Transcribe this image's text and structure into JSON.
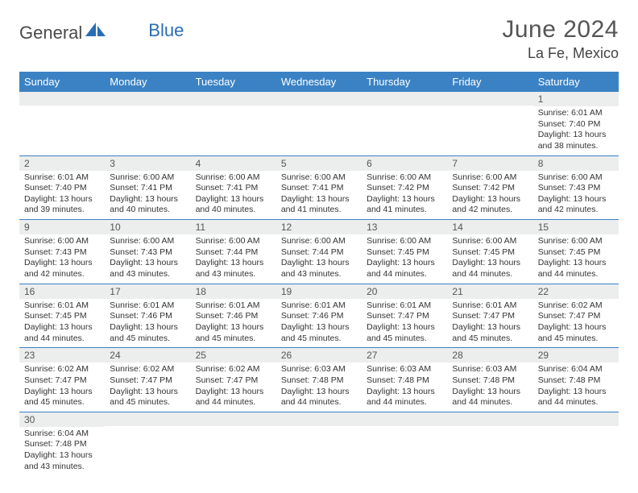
{
  "brand": {
    "part1": "General",
    "part2": "Blue"
  },
  "title": "June 2024",
  "location": "La Fe, Mexico",
  "colors": {
    "header_bg": "#3b82c4",
    "header_fg": "#ffffff",
    "daynum_bg": "#eceded",
    "border": "#3b82c4",
    "text": "#333333",
    "title_color": "#555555",
    "brand_gray": "#4a4a4a",
    "brand_blue": "#2a6db5"
  },
  "weekdays": [
    "Sunday",
    "Monday",
    "Tuesday",
    "Wednesday",
    "Thursday",
    "Friday",
    "Saturday"
  ],
  "weeks": [
    [
      {
        "n": "",
        "sr": "",
        "ss": "",
        "dl": ""
      },
      {
        "n": "",
        "sr": "",
        "ss": "",
        "dl": ""
      },
      {
        "n": "",
        "sr": "",
        "ss": "",
        "dl": ""
      },
      {
        "n": "",
        "sr": "",
        "ss": "",
        "dl": ""
      },
      {
        "n": "",
        "sr": "",
        "ss": "",
        "dl": ""
      },
      {
        "n": "",
        "sr": "",
        "ss": "",
        "dl": ""
      },
      {
        "n": "1",
        "sr": "Sunrise: 6:01 AM",
        "ss": "Sunset: 7:40 PM",
        "dl": "Daylight: 13 hours and 38 minutes."
      }
    ],
    [
      {
        "n": "2",
        "sr": "Sunrise: 6:01 AM",
        "ss": "Sunset: 7:40 PM",
        "dl": "Daylight: 13 hours and 39 minutes."
      },
      {
        "n": "3",
        "sr": "Sunrise: 6:00 AM",
        "ss": "Sunset: 7:41 PM",
        "dl": "Daylight: 13 hours and 40 minutes."
      },
      {
        "n": "4",
        "sr": "Sunrise: 6:00 AM",
        "ss": "Sunset: 7:41 PM",
        "dl": "Daylight: 13 hours and 40 minutes."
      },
      {
        "n": "5",
        "sr": "Sunrise: 6:00 AM",
        "ss": "Sunset: 7:41 PM",
        "dl": "Daylight: 13 hours and 41 minutes."
      },
      {
        "n": "6",
        "sr": "Sunrise: 6:00 AM",
        "ss": "Sunset: 7:42 PM",
        "dl": "Daylight: 13 hours and 41 minutes."
      },
      {
        "n": "7",
        "sr": "Sunrise: 6:00 AM",
        "ss": "Sunset: 7:42 PM",
        "dl": "Daylight: 13 hours and 42 minutes."
      },
      {
        "n": "8",
        "sr": "Sunrise: 6:00 AM",
        "ss": "Sunset: 7:43 PM",
        "dl": "Daylight: 13 hours and 42 minutes."
      }
    ],
    [
      {
        "n": "9",
        "sr": "Sunrise: 6:00 AM",
        "ss": "Sunset: 7:43 PM",
        "dl": "Daylight: 13 hours and 42 minutes."
      },
      {
        "n": "10",
        "sr": "Sunrise: 6:00 AM",
        "ss": "Sunset: 7:43 PM",
        "dl": "Daylight: 13 hours and 43 minutes."
      },
      {
        "n": "11",
        "sr": "Sunrise: 6:00 AM",
        "ss": "Sunset: 7:44 PM",
        "dl": "Daylight: 13 hours and 43 minutes."
      },
      {
        "n": "12",
        "sr": "Sunrise: 6:00 AM",
        "ss": "Sunset: 7:44 PM",
        "dl": "Daylight: 13 hours and 43 minutes."
      },
      {
        "n": "13",
        "sr": "Sunrise: 6:00 AM",
        "ss": "Sunset: 7:45 PM",
        "dl": "Daylight: 13 hours and 44 minutes."
      },
      {
        "n": "14",
        "sr": "Sunrise: 6:00 AM",
        "ss": "Sunset: 7:45 PM",
        "dl": "Daylight: 13 hours and 44 minutes."
      },
      {
        "n": "15",
        "sr": "Sunrise: 6:00 AM",
        "ss": "Sunset: 7:45 PM",
        "dl": "Daylight: 13 hours and 44 minutes."
      }
    ],
    [
      {
        "n": "16",
        "sr": "Sunrise: 6:01 AM",
        "ss": "Sunset: 7:45 PM",
        "dl": "Daylight: 13 hours and 44 minutes."
      },
      {
        "n": "17",
        "sr": "Sunrise: 6:01 AM",
        "ss": "Sunset: 7:46 PM",
        "dl": "Daylight: 13 hours and 45 minutes."
      },
      {
        "n": "18",
        "sr": "Sunrise: 6:01 AM",
        "ss": "Sunset: 7:46 PM",
        "dl": "Daylight: 13 hours and 45 minutes."
      },
      {
        "n": "19",
        "sr": "Sunrise: 6:01 AM",
        "ss": "Sunset: 7:46 PM",
        "dl": "Daylight: 13 hours and 45 minutes."
      },
      {
        "n": "20",
        "sr": "Sunrise: 6:01 AM",
        "ss": "Sunset: 7:47 PM",
        "dl": "Daylight: 13 hours and 45 minutes."
      },
      {
        "n": "21",
        "sr": "Sunrise: 6:01 AM",
        "ss": "Sunset: 7:47 PM",
        "dl": "Daylight: 13 hours and 45 minutes."
      },
      {
        "n": "22",
        "sr": "Sunrise: 6:02 AM",
        "ss": "Sunset: 7:47 PM",
        "dl": "Daylight: 13 hours and 45 minutes."
      }
    ],
    [
      {
        "n": "23",
        "sr": "Sunrise: 6:02 AM",
        "ss": "Sunset: 7:47 PM",
        "dl": "Daylight: 13 hours and 45 minutes."
      },
      {
        "n": "24",
        "sr": "Sunrise: 6:02 AM",
        "ss": "Sunset: 7:47 PM",
        "dl": "Daylight: 13 hours and 45 minutes."
      },
      {
        "n": "25",
        "sr": "Sunrise: 6:02 AM",
        "ss": "Sunset: 7:47 PM",
        "dl": "Daylight: 13 hours and 44 minutes."
      },
      {
        "n": "26",
        "sr": "Sunrise: 6:03 AM",
        "ss": "Sunset: 7:48 PM",
        "dl": "Daylight: 13 hours and 44 minutes."
      },
      {
        "n": "27",
        "sr": "Sunrise: 6:03 AM",
        "ss": "Sunset: 7:48 PM",
        "dl": "Daylight: 13 hours and 44 minutes."
      },
      {
        "n": "28",
        "sr": "Sunrise: 6:03 AM",
        "ss": "Sunset: 7:48 PM",
        "dl": "Daylight: 13 hours and 44 minutes."
      },
      {
        "n": "29",
        "sr": "Sunrise: 6:04 AM",
        "ss": "Sunset: 7:48 PM",
        "dl": "Daylight: 13 hours and 44 minutes."
      }
    ],
    [
      {
        "n": "30",
        "sr": "Sunrise: 6:04 AM",
        "ss": "Sunset: 7:48 PM",
        "dl": "Daylight: 13 hours and 43 minutes."
      },
      {
        "n": "",
        "sr": "",
        "ss": "",
        "dl": ""
      },
      {
        "n": "",
        "sr": "",
        "ss": "",
        "dl": ""
      },
      {
        "n": "",
        "sr": "",
        "ss": "",
        "dl": ""
      },
      {
        "n": "",
        "sr": "",
        "ss": "",
        "dl": ""
      },
      {
        "n": "",
        "sr": "",
        "ss": "",
        "dl": ""
      },
      {
        "n": "",
        "sr": "",
        "ss": "",
        "dl": ""
      }
    ]
  ]
}
